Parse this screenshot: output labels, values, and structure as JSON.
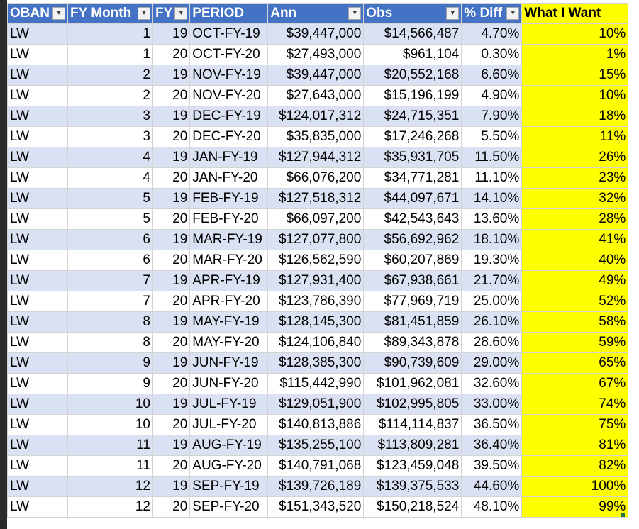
{
  "columns": [
    {
      "label": "OBAN",
      "filter": true
    },
    {
      "label": "FY Month",
      "filter": true
    },
    {
      "label": "FY",
      "filter": true
    },
    {
      "label": "PERIOD",
      "filter": false
    },
    {
      "label": "Ann",
      "filter": true
    },
    {
      "label": "Obs",
      "filter": true
    },
    {
      "label": "% Diff",
      "filter": true
    },
    {
      "label": "What I Want",
      "filter": false
    }
  ],
  "rows": [
    [
      "LW",
      "1",
      "19",
      "OCT-FY-19",
      "$39,447,000",
      "$14,566,487",
      "4.70%",
      "10%"
    ],
    [
      "LW",
      "1",
      "20",
      "OCT-FY-20",
      "$27,493,000",
      "$961,104",
      "0.30%",
      "1%"
    ],
    [
      "LW",
      "2",
      "19",
      "NOV-FY-19",
      "$39,447,000",
      "$20,552,168",
      "6.60%",
      "15%"
    ],
    [
      "LW",
      "2",
      "20",
      "NOV-FY-20",
      "$27,643,000",
      "$15,196,199",
      "4.90%",
      "10%"
    ],
    [
      "LW",
      "3",
      "19",
      "DEC-FY-19",
      "$124,017,312",
      "$24,715,351",
      "7.90%",
      "18%"
    ],
    [
      "LW",
      "3",
      "20",
      "DEC-FY-20",
      "$35,835,000",
      "$17,246,268",
      "5.50%",
      "11%"
    ],
    [
      "LW",
      "4",
      "19",
      "JAN-FY-19",
      "$127,944,312",
      "$35,931,705",
      "11.50%",
      "26%"
    ],
    [
      "LW",
      "4",
      "20",
      "JAN-FY-20",
      "$66,076,200",
      "$34,771,281",
      "11.10%",
      "23%"
    ],
    [
      "LW",
      "5",
      "19",
      "FEB-FY-19",
      "$127,518,312",
      "$44,097,671",
      "14.10%",
      "32%"
    ],
    [
      "LW",
      "5",
      "20",
      "FEB-FY-20",
      "$66,097,200",
      "$42,543,643",
      "13.60%",
      "28%"
    ],
    [
      "LW",
      "6",
      "19",
      "MAR-FY-19",
      "$127,077,800",
      "$56,692,962",
      "18.10%",
      "41%"
    ],
    [
      "LW",
      "6",
      "20",
      "MAR-FY-20",
      "$126,562,590",
      "$60,207,869",
      "19.30%",
      "40%"
    ],
    [
      "LW",
      "7",
      "19",
      "APR-FY-19",
      "$127,931,400",
      "$67,938,661",
      "21.70%",
      "49%"
    ],
    [
      "LW",
      "7",
      "20",
      "APR-FY-20",
      "$123,786,390",
      "$77,969,719",
      "25.00%",
      "52%"
    ],
    [
      "LW",
      "8",
      "19",
      "MAY-FY-19",
      "$128,145,300",
      "$81,451,859",
      "26.10%",
      "58%"
    ],
    [
      "LW",
      "8",
      "20",
      "MAY-FY-20",
      "$124,106,840",
      "$89,343,878",
      "28.60%",
      "59%"
    ],
    [
      "LW",
      "9",
      "19",
      "JUN-FY-19",
      "$128,385,300",
      "$90,739,609",
      "29.00%",
      "65%"
    ],
    [
      "LW",
      "9",
      "20",
      "JUN-FY-20",
      "$115,442,990",
      "$101,962,081",
      "32.60%",
      "67%"
    ],
    [
      "LW",
      "10",
      "19",
      "JUL-FY-19",
      "$129,051,900",
      "$102,995,805",
      "33.00%",
      "74%"
    ],
    [
      "LW",
      "10",
      "20",
      "JUL-FY-20",
      "$140,813,886",
      "$114,114,837",
      "36.50%",
      "75%"
    ],
    [
      "LW",
      "11",
      "19",
      "AUG-FY-19",
      "$135,255,100",
      "$113,809,281",
      "36.40%",
      "81%"
    ],
    [
      "LW",
      "11",
      "20",
      "AUG-FY-20",
      "$140,791,068",
      "$123,459,048",
      "39.50%",
      "82%"
    ],
    [
      "LW",
      "12",
      "19",
      "SEP-FY-19",
      "$139,726,189",
      "$139,375,533",
      "44.60%",
      "100%"
    ],
    [
      "LW",
      "12",
      "20",
      "SEP-FY-20",
      "$151,343,520",
      "$150,218,524",
      "48.10%",
      "99%"
    ]
  ],
  "colors": {
    "header_bg": "#4472c4",
    "band_bg": "#d9e1f2",
    "highlight": "#ffff00"
  }
}
